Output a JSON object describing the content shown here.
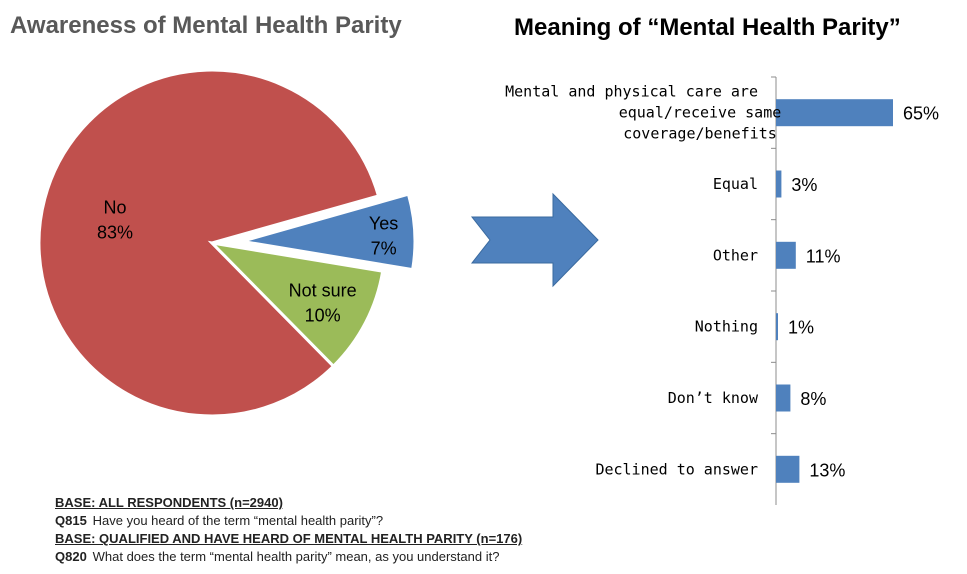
{
  "pie": {
    "title": "Awareness of Mental Health Parity",
    "chart_data": {
      "type": "pie",
      "title": "Awareness of Mental Health Parity",
      "slices": [
        {
          "label": "Yes",
          "value": 7,
          "value_label": "7%",
          "color": "#4F81BD",
          "exploded": true
        },
        {
          "label": "No",
          "value": 83,
          "value_label": "83%",
          "color": "#C0504D",
          "exploded": false
        },
        {
          "label": "Not sure",
          "value": 10,
          "value_label": "10%",
          "color": "#9BBB59",
          "exploded": false
        }
      ]
    }
  },
  "bar": {
    "title": "Meaning of “Mental Health Parity”",
    "chart_data": {
      "type": "bar",
      "orientation": "horizontal",
      "title": "Meaning of “Mental Health Parity”",
      "categories": [
        "Mental and physical care are equal/receive same coverage/benefits",
        "Equal",
        "Other",
        "Nothing",
        "Don't know",
        "Declined to answer"
      ],
      "category_lines": [
        [
          "Mental and physical care are",
          "equal/receive same",
          "coverage/benefits"
        ],
        [
          "Equal"
        ],
        [
          "Other"
        ],
        [
          "Nothing"
        ],
        [
          "Don’t know"
        ],
        [
          "Declined to answer"
        ]
      ],
      "values": [
        65,
        3,
        11,
        1,
        8,
        13
      ],
      "value_labels": [
        "65%",
        "3%",
        "11%",
        "1%",
        "8%",
        "13%"
      ],
      "xlim": [
        0,
        65
      ],
      "bar_color": "#4F81BD",
      "grid": false
    }
  },
  "arrow_color": "#4F81BD",
  "notes": {
    "base1": "BASE: ALL RESPONDENTS (n=2940)",
    "q1_code": "Q815",
    "q1_text": "Have you heard of the term “mental health parity”?",
    "base2": "BASE: QUALIFIED AND HAVE HEARD OF MENTAL HEALTH PARITY (n=176)",
    "q2_code": "Q820",
    "q2_text": "What does the term “mental health parity” mean, as you understand it?"
  }
}
